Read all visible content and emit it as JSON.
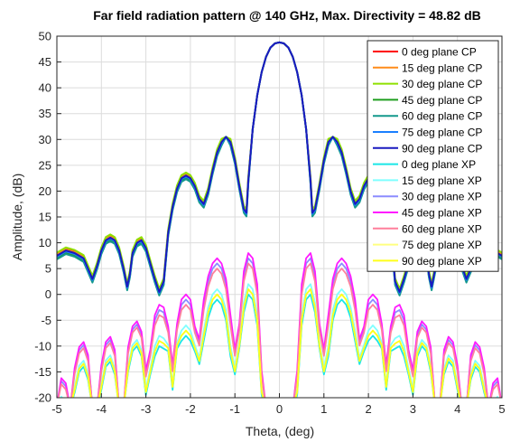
{
  "chart_data": {
    "type": "line",
    "title": "Far field radiation pattern @ 140 GHz, Max. Directivity = 48.82 dB",
    "xlabel": "Theta, (deg)",
    "ylabel": "Amplitude, (dB)",
    "xlim": [
      -5,
      5
    ],
    "ylim": [
      -20,
      50
    ],
    "xticks": [
      -5,
      -4,
      -3,
      -2,
      -1,
      0,
      1,
      2,
      3,
      4,
      5
    ],
    "yticks": [
      -20,
      -15,
      -10,
      -5,
      0,
      5,
      10,
      15,
      20,
      25,
      30,
      35,
      40,
      45,
      50
    ],
    "grid": true,
    "legend_position": "top-right",
    "series": [
      {
        "name": "0 deg plane CP",
        "color": "#ff0000",
        "group": "CP"
      },
      {
        "name": "15 deg plane CP",
        "color": "#ff8c1a",
        "group": "CP"
      },
      {
        "name": "30 deg plane CP",
        "color": "#8fe000",
        "group": "CP"
      },
      {
        "name": "45 deg plane CP",
        "color": "#1f9e1f",
        "group": "CP"
      },
      {
        "name": "60 deg plane CP",
        "color": "#14998c",
        "group": "CP"
      },
      {
        "name": "75 deg plane CP",
        "color": "#1a7fff",
        "group": "CP"
      },
      {
        "name": "90 deg plane CP",
        "color": "#1a1abf",
        "group": "CP"
      },
      {
        "name": "0 deg plane XP",
        "color": "#1ae6e6",
        "group": "XP",
        "peak": 0
      },
      {
        "name": "15 deg plane XP",
        "color": "#80ffff",
        "group": "XP",
        "peak": 2
      },
      {
        "name": "30 deg plane XP",
        "color": "#8c8cff",
        "group": "XP",
        "peak": 7
      },
      {
        "name": "45 deg plane XP",
        "color": "#ff1aff",
        "group": "XP",
        "peak": 8
      },
      {
        "name": "60 deg plane XP",
        "color": "#ff7f9c",
        "group": "XP",
        "peak": 6
      },
      {
        "name": "75 deg plane XP",
        "color": "#ffff80",
        "group": "XP",
        "peak": 1
      },
      {
        "name": "90 deg plane XP",
        "color": "#ffff1a",
        "group": "XP",
        "peak": 1
      }
    ],
    "cp_main": {
      "theta": [
        -5,
        -4.8,
        -4.6,
        -4.4,
        -4.3,
        -4.2,
        -4.1,
        -4.0,
        -3.9,
        -3.8,
        -3.7,
        -3.6,
        -3.5,
        -3.42,
        -3.36,
        -3.3,
        -3.2,
        -3.1,
        -3.0,
        -2.9,
        -2.8,
        -2.7,
        -2.6,
        -2.5,
        -2.4,
        -2.3,
        -2.2,
        -2.1,
        -2.0,
        -1.9,
        -1.8,
        -1.7,
        -1.6,
        -1.5,
        -1.4,
        -1.3,
        -1.2,
        -1.1,
        -1.0,
        -0.9,
        -0.8,
        -0.74,
        -0.7,
        -0.6,
        -0.5,
        -0.4,
        -0.3,
        -0.2,
        -0.1,
        0,
        0.1,
        0.2,
        0.3,
        0.4,
        0.5,
        0.6,
        0.7,
        0.74,
        0.8,
        0.9,
        1.0,
        1.1,
        1.2,
        1.3,
        1.4,
        1.5,
        1.6,
        1.7,
        1.8,
        1.9,
        2.0,
        2.1,
        2.2,
        2.3,
        2.4,
        2.5,
        2.6,
        2.7,
        2.8,
        2.9,
        3.0,
        3.1,
        3.2,
        3.3,
        3.36,
        3.42,
        3.5,
        3.6,
        3.7,
        3.8,
        3.9,
        4.0,
        4.1,
        4.2,
        4.3,
        4.4,
        4.6,
        4.8,
        5
      ],
      "values": [
        7.5,
        8.5,
        8.0,
        7.0,
        5.0,
        3.0,
        5.5,
        8.5,
        10.5,
        11.0,
        10.5,
        8.5,
        5.0,
        1.5,
        4.0,
        8.0,
        10.0,
        10.5,
        9.0,
        6.0,
        3.0,
        0.5,
        2.5,
        12.0,
        17.0,
        20.5,
        22.5,
        23.0,
        22.5,
        21.0,
        18.5,
        17.5,
        20.0,
        24.0,
        27.5,
        29.5,
        30.5,
        29.5,
        26.0,
        21.0,
        16.5,
        15.8,
        22.0,
        32.0,
        38.5,
        43.0,
        46.0,
        47.8,
        48.6,
        48.8,
        48.6,
        47.8,
        46.0,
        43.0,
        38.5,
        32.0,
        22.0,
        15.8,
        16.5,
        21.0,
        26.0,
        29.5,
        30.5,
        29.5,
        27.5,
        24.0,
        20.0,
        17.5,
        18.5,
        21.0,
        22.5,
        23.0,
        22.5,
        20.5,
        17.0,
        12.0,
        2.5,
        0.5,
        3.0,
        6.0,
        9.0,
        10.5,
        10.0,
        8.0,
        4.0,
        1.5,
        5.0,
        8.5,
        10.5,
        11.0,
        10.5,
        8.5,
        5.5,
        3.0,
        5.0,
        7.0,
        8.0,
        8.5,
        7.5
      ]
    },
    "xp_shape": {
      "theta": [
        -5,
        -4.9,
        -4.8,
        -4.7,
        -4.6,
        -4.5,
        -4.4,
        -4.3,
        -4.2,
        -4.1,
        -4.0,
        -3.9,
        -3.8,
        -3.7,
        -3.6,
        -3.5,
        -3.4,
        -3.3,
        -3.2,
        -3.1,
        -3.0,
        -2.9,
        -2.8,
        -2.7,
        -2.6,
        -2.5,
        -2.4,
        -2.3,
        -2.2,
        -2.1,
        -2.0,
        -1.9,
        -1.8,
        -1.7,
        -1.6,
        -1.5,
        -1.4,
        -1.3,
        -1.2,
        -1.1,
        -1.0,
        -0.9,
        -0.8,
        -0.7,
        -0.6,
        -0.5,
        -0.4,
        -0.3,
        -0.2,
        -0.1,
        0,
        0.1,
        0.2,
        0.3,
        0.4,
        0.5,
        0.6,
        0.7,
        0.8,
        0.9,
        1.0,
        1.1,
        1.2,
        1.3,
        1.4,
        1.5,
        1.6,
        1.7,
        1.8,
        1.9,
        2.0,
        2.1,
        2.2,
        2.3,
        2.4,
        2.5,
        2.6,
        2.7,
        2.8,
        2.9,
        3.0,
        3.1,
        3.2,
        3.3,
        3.4,
        3.5,
        3.6,
        3.7,
        3.8,
        3.9,
        4.0,
        4.1,
        4.2,
        4.3,
        4.4,
        4.5,
        4.6,
        4.7,
        4.8,
        4.9,
        5
      ],
      "values": [
        -21.5,
        -16.5,
        -17.5,
        -22,
        -14.5,
        -10.5,
        -9.5,
        -12,
        -22,
        -22,
        -14,
        -9.5,
        -8.5,
        -11,
        -22,
        -22,
        -10.5,
        -6.5,
        -5.5,
        -7.5,
        -15,
        -11,
        -4.5,
        -2.5,
        -3,
        -6.5,
        -14,
        -6,
        -1.5,
        -0.5,
        -1.5,
        -6.5,
        -9,
        -1.5,
        3,
        5.5,
        6.5,
        5.5,
        2.5,
        -4.5,
        -11,
        -6,
        4,
        7.5,
        6.5,
        1.5,
        -15,
        -22,
        -22,
        -22,
        -22,
        -22,
        -22,
        -22,
        -15,
        1.5,
        6.5,
        7.5,
        4,
        -6,
        -11,
        -4.5,
        2.5,
        5.5,
        6.5,
        5.5,
        3,
        -1.5,
        -9,
        -6.5,
        -1.5,
        -0.5,
        -1.5,
        -6,
        -14,
        -6.5,
        -3,
        -2.5,
        -4.5,
        -11,
        -15,
        -7.5,
        -5.5,
        -6.5,
        -10.5,
        -22,
        -22,
        -11,
        -8.5,
        -9.5,
        -14,
        -22,
        -22,
        -12,
        -9.5,
        -10.5,
        -14.5,
        -22,
        -17.5,
        -16.5,
        -21.5
      ]
    }
  }
}
